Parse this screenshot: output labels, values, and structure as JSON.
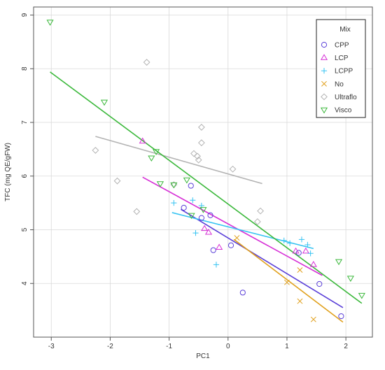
{
  "chart_data": {
    "type": "scatter",
    "title": "",
    "xlabel": "PC1",
    "ylabel": "TFC (mg QE/gFW)",
    "xlim": [
      -3.3,
      2.45
    ],
    "ylim": [
      3.0,
      9.15
    ],
    "xticks": [
      -3,
      -2,
      -1,
      0,
      1,
      2
    ],
    "yticks": [
      4,
      5,
      6,
      7,
      8,
      9
    ],
    "grid": true,
    "legend": {
      "title": "Mix",
      "position": "top-right"
    },
    "series": [
      {
        "name": "CPP",
        "marker": "circle",
        "color": "#5a3fd8",
        "points": [
          [
            -0.63,
            5.82
          ],
          [
            -0.75,
            5.41
          ],
          [
            -0.3,
            5.27
          ],
          [
            -0.25,
            4.62
          ],
          [
            -0.45,
            5.22
          ],
          [
            0.05,
            4.71
          ],
          [
            0.25,
            3.83
          ],
          [
            1.2,
            4.57
          ],
          [
            1.55,
            3.99
          ],
          [
            1.92,
            3.39
          ]
        ],
        "fit": [
          [
            -0.8,
            5.38
          ],
          [
            1.95,
            3.55
          ]
        ]
      },
      {
        "name": "LCP",
        "marker": "triangle-up",
        "color": "#d62fd6",
        "points": [
          [
            -1.45,
            6.65
          ],
          [
            -0.4,
            5.02
          ],
          [
            -0.33,
            4.95
          ],
          [
            -0.15,
            4.67
          ],
          [
            1.32,
            4.6
          ],
          [
            1.15,
            4.6
          ],
          [
            1.45,
            4.35
          ]
        ],
        "fit": [
          [
            -1.45,
            5.98
          ],
          [
            1.6,
            4.15
          ]
        ]
      },
      {
        "name": "LCPP",
        "marker": "plus",
        "color": "#35c3f2",
        "points": [
          [
            -0.92,
            5.5
          ],
          [
            -0.6,
            5.55
          ],
          [
            -0.45,
            5.45
          ],
          [
            -0.2,
            4.35
          ],
          [
            -0.55,
            4.94
          ],
          [
            1.25,
            4.82
          ],
          [
            1.35,
            4.72
          ],
          [
            1.4,
            4.56
          ],
          [
            1.05,
            4.75
          ],
          [
            0.95,
            4.8
          ]
        ],
        "fit": [
          [
            -0.95,
            5.32
          ],
          [
            1.45,
            4.65
          ]
        ]
      },
      {
        "name": "No",
        "marker": "cross",
        "color": "#e0a01c",
        "points": [
          [
            1.0,
            4.02
          ],
          [
            1.22,
            3.67
          ],
          [
            1.22,
            4.25
          ],
          [
            1.45,
            3.33
          ],
          [
            0.15,
            4.85
          ]
        ],
        "fit": [
          [
            0.1,
            4.82
          ],
          [
            1.95,
            3.28
          ]
        ]
      },
      {
        "name": "Ultraflo",
        "marker": "diamond",
        "color": "#b3b3b3",
        "points": [
          [
            -2.25,
            6.48
          ],
          [
            -1.88,
            5.91
          ],
          [
            -1.38,
            8.12
          ],
          [
            -1.55,
            5.34
          ],
          [
            -0.92,
            5.84
          ],
          [
            -0.45,
            6.91
          ],
          [
            -0.58,
            6.42
          ],
          [
            -0.52,
            6.37
          ],
          [
            -0.5,
            6.3
          ],
          [
            -0.45,
            6.62
          ],
          [
            0.08,
            6.13
          ],
          [
            0.55,
            5.35
          ],
          [
            0.5,
            5.15
          ]
        ],
        "fit": [
          [
            -2.25,
            6.74
          ],
          [
            0.58,
            5.86
          ]
        ]
      },
      {
        "name": "Visco",
        "marker": "triangle-down",
        "color": "#3bb83b",
        "points": [
          [
            -3.02,
            8.87
          ],
          [
            -2.1,
            7.38
          ],
          [
            -1.22,
            6.46
          ],
          [
            -1.3,
            6.34
          ],
          [
            -1.15,
            5.86
          ],
          [
            -0.7,
            5.93
          ],
          [
            -0.62,
            5.27
          ],
          [
            -0.42,
            5.38
          ],
          [
            -0.92,
            5.84
          ],
          [
            1.88,
            4.41
          ],
          [
            2.08,
            4.1
          ],
          [
            2.27,
            3.78
          ]
        ],
        "fit": [
          [
            -3.02,
            7.94
          ],
          [
            2.27,
            3.63
          ]
        ]
      }
    ]
  }
}
